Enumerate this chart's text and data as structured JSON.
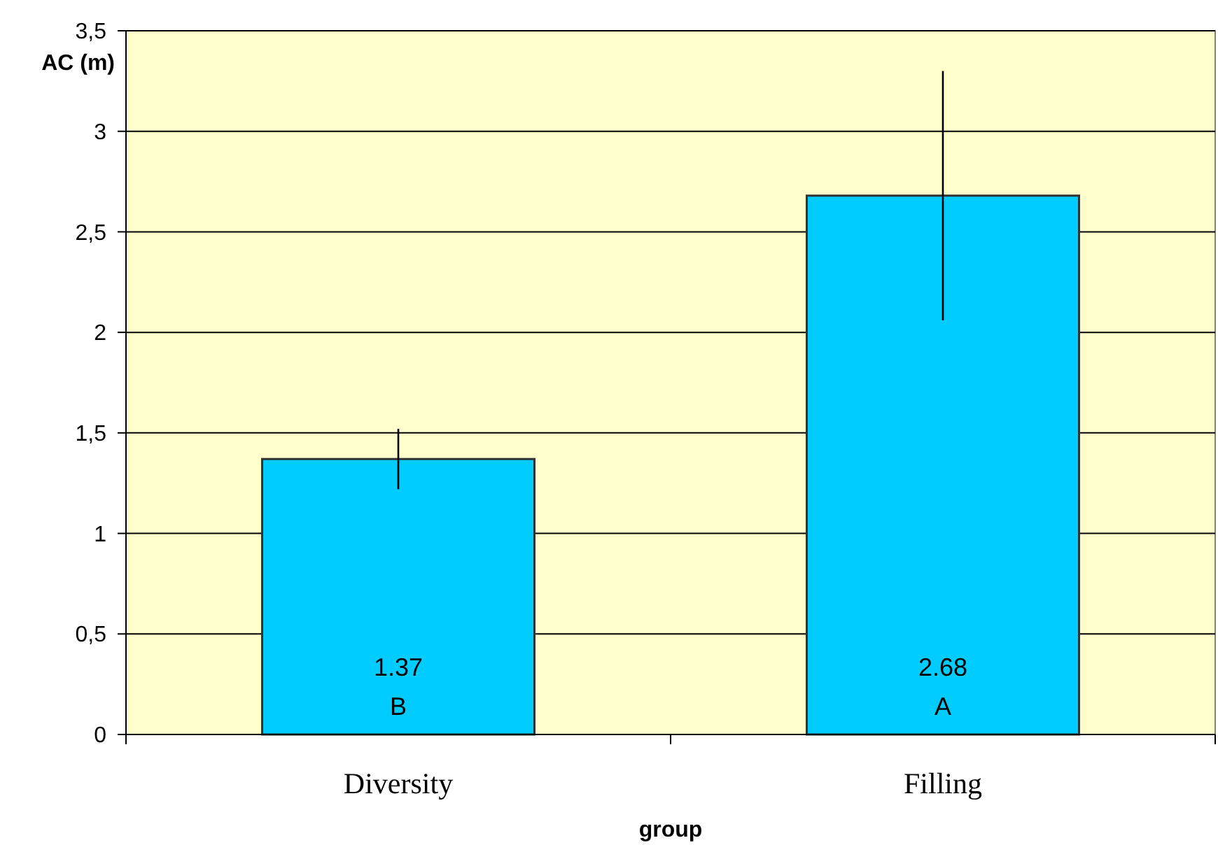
{
  "chart_data": {
    "type": "bar",
    "xlabel": "group",
    "ylabel": "AC (m)",
    "categories": [
      "Diversity",
      "Filling"
    ],
    "values": [
      1.37,
      2.68
    ],
    "color": "#00ccff",
    "errors": [
      [
        1.22,
        1.52
      ],
      [
        2.06,
        3.3
      ]
    ],
    "data_labels": true,
    "annotations": [
      "B",
      "A"
    ],
    "ylim": [
      0,
      3.5
    ],
    "yticks": [
      0,
      {
        "value": 0.5,
        "label": "0,5"
      },
      1,
      {
        "value": 1.5,
        "label": "1,5"
      },
      2,
      {
        "value": 2.5,
        "label": "2,5"
      },
      3,
      {
        "value": 3.5,
        "label": "3,5"
      }
    ],
    "grid": "y"
  }
}
